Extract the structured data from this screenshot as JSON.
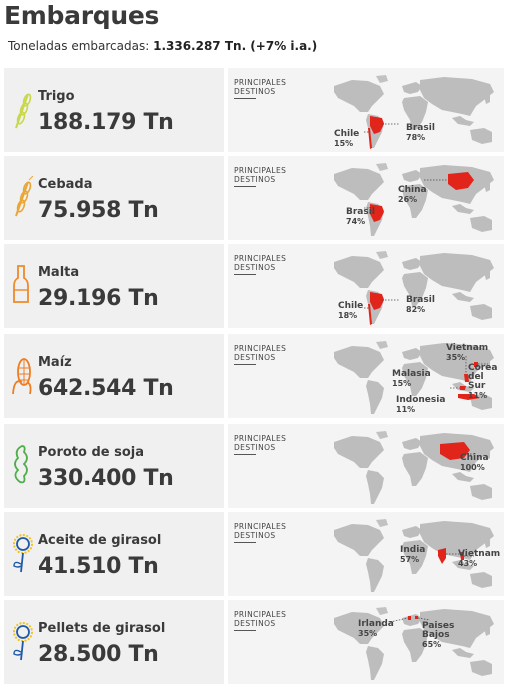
{
  "header": {
    "title": "Embarques",
    "subtitle_prefix": "Toneladas embarcadas: ",
    "subtitle_value": "1.336.287 Tn. (+7% i.a.)"
  },
  "dest_heading_line1": "PRINCIPALES",
  "dest_heading_line2": "DESTINOS",
  "colors": {
    "highlight": "#e1251b",
    "land": "#bdbdbd",
    "trigo": "#c8d84a",
    "cebada": "#e9a637",
    "malta": "#ee8a2a",
    "maiz": "#ee7d22",
    "soja": "#4fae4a",
    "girasol_yellow": "#f1c31c",
    "girasol_blue": "#1e5aa8"
  },
  "products": [
    {
      "name": "Trigo",
      "amount": "188.179 Tn",
      "icon": "wheat-icon",
      "destinations": [
        {
          "country": "Chile",
          "pct": "15%"
        },
        {
          "country": "Brasil",
          "pct": "78%"
        }
      ]
    },
    {
      "name": "Cebada",
      "amount": "75.958 Tn",
      "icon": "barley-icon",
      "destinations": [
        {
          "country": "China",
          "pct": "26%"
        },
        {
          "country": "Brasil",
          "pct": "74%"
        }
      ]
    },
    {
      "name": "Malta",
      "amount": "29.196 Tn",
      "icon": "malt-glass-icon",
      "destinations": [
        {
          "country": "Chile",
          "pct": "18%"
        },
        {
          "country": "Brasil",
          "pct": "82%"
        }
      ]
    },
    {
      "name": "Maíz",
      "amount": "642.544 Tn",
      "icon": "corn-icon",
      "destinations": [
        {
          "country": "Vietnam",
          "pct": "35%"
        },
        {
          "country": "Malasia",
          "pct": "15%"
        },
        {
          "country": "Corea del Sur",
          "pct": "11%"
        },
        {
          "country": "Indonesia",
          "pct": "11%"
        }
      ]
    },
    {
      "name": "Poroto de soja",
      "amount": "330.400 Tn",
      "icon": "soybean-icon",
      "destinations": [
        {
          "country": "China",
          "pct": "100%"
        }
      ]
    },
    {
      "name": "Aceite de girasol",
      "amount": "41.510 Tn",
      "icon": "sunflower-icon",
      "destinations": [
        {
          "country": "India",
          "pct": "57%"
        },
        {
          "country": "Vietnam",
          "pct": "43%"
        }
      ]
    },
    {
      "name": "Pellets de girasol",
      "amount": "28.500 Tn",
      "icon": "sunflower-icon",
      "destinations": [
        {
          "country": "Irlanda",
          "pct": "35%"
        },
        {
          "country": "Paises Bajos",
          "pct": "65%"
        }
      ]
    }
  ]
}
